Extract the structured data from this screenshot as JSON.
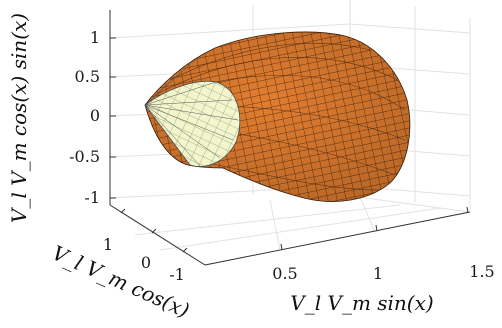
{
  "chart_data": {
    "type": "surface3d",
    "title": "",
    "xlabel": "V_l V_m sin(x)",
    "ylabel": "V_l V_m cos(x)",
    "zlabel": "V_l V_m cos(x) sin(x)",
    "x_ticks": [
      "0.5",
      "1",
      "1.5"
    ],
    "y_ticks": [
      "1",
      "0",
      "-1"
    ],
    "z_ticks": [
      "1",
      "0.5",
      "0",
      "-0.5",
      "-1"
    ],
    "xlim": [
      0.25,
      1.5
    ],
    "ylim": [
      -1.3,
      1.3
    ],
    "zlim": [
      -1.3,
      1.3
    ],
    "grid": true,
    "series": [
      {
        "kind": "outer surface (orange mesh)",
        "color": "#e07a2e",
        "edge": "#3a1d08"
      },
      {
        "kind": "inner cap (pale mesh)",
        "color": "#f2f7cc",
        "edge": "#505050"
      }
    ]
  }
}
